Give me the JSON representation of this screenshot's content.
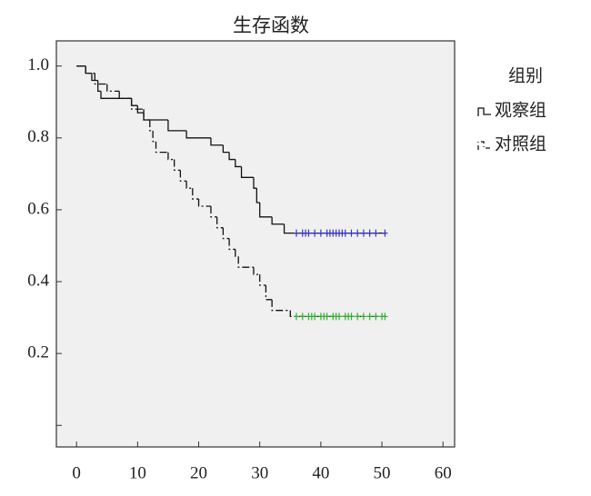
{
  "chart_data": {
    "type": "km",
    "title": "生存函数",
    "legend_title": "组别",
    "xlim": [
      -3.3,
      61.9
    ],
    "ylim": [
      -0.06,
      1.07
    ],
    "xticks": [
      0,
      10,
      20,
      30,
      40,
      50,
      60
    ],
    "yticks": [
      {
        "value": 1,
        "label": "1.0"
      },
      0.8,
      0.6,
      0.4,
      0.2,
      {
        "value": 0,
        "label": null
      }
    ],
    "background": "#f0f0f0",
    "series": [
      {
        "name": "观察组",
        "color": "#111111",
        "line_style": "solid",
        "x": [
          0,
          1.5,
          2.5,
          3.5,
          4,
          9,
          10,
          11,
          15,
          18,
          22,
          24,
          25,
          26,
          27,
          29,
          29.5,
          30,
          32,
          34
        ],
        "values": [
          1,
          0.98,
          0.96,
          0.93,
          0.91,
          0.89,
          0.87,
          0.85,
          0.82,
          0.8,
          0.78,
          0.76,
          0.74,
          0.72,
          0.69,
          0.66,
          0.62,
          0.58,
          0.56,
          0.535
        ],
        "censored_color": "#3535c0",
        "censored_at": 0.535,
        "censored_x": [
          36,
          37,
          37.5,
          38,
          39,
          40,
          41,
          41.5,
          42,
          42.5,
          43,
          43.5,
          44,
          45,
          46,
          47,
          48,
          49,
          50.5
        ]
      },
      {
        "name": "对照组",
        "color": "#111111",
        "line_style": "dashdot",
        "x": [
          0,
          1.5,
          3,
          5,
          7,
          9,
          11,
          12,
          12.5,
          13,
          15,
          16,
          17,
          18,
          19,
          20,
          22,
          23,
          24,
          25,
          26,
          26.5,
          29,
          30,
          31,
          32,
          35
        ],
        "values": [
          1,
          0.98,
          0.95,
          0.93,
          0.91,
          0.88,
          0.85,
          0.82,
          0.79,
          0.76,
          0.74,
          0.71,
          0.68,
          0.66,
          0.63,
          0.61,
          0.58,
          0.55,
          0.52,
          0.49,
          0.47,
          0.44,
          0.42,
          0.39,
          0.35,
          0.32,
          0.303
        ],
        "censored_color": "#30b030",
        "censored_at": 0.303,
        "censored_x": [
          36,
          37,
          38,
          38.5,
          39,
          40,
          40.5,
          41,
          42,
          42.5,
          43,
          44,
          44.5,
          45,
          46,
          47,
          48,
          49,
          50,
          50.5
        ]
      }
    ]
  }
}
